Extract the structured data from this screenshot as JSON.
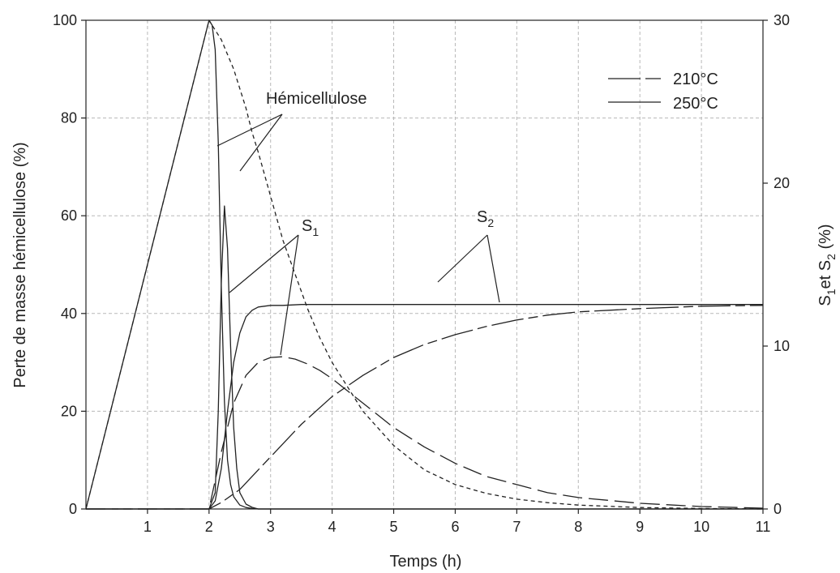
{
  "chart_data": {
    "type": "line",
    "xlabel": "Temps (h)",
    "ylabel_left": "Perte de masse hémicellulose (%)",
    "ylabel_right": {
      "s": "S",
      "sub1": "1",
      "et": "et S",
      "sub2": "2",
      "unit": " (%)"
    },
    "xlim": [
      0,
      11
    ],
    "ylim_left": [
      0,
      100
    ],
    "ylim_right": [
      0,
      30
    ],
    "x_ticks": [
      1,
      2,
      3,
      4,
      5,
      6,
      7,
      8,
      9,
      10,
      11
    ],
    "y_left_ticks": [
      0,
      20,
      40,
      60,
      80,
      100
    ],
    "y_right_ticks": [
      0,
      10,
      20,
      30
    ],
    "grid": true,
    "legend": {
      "placement": "top-right",
      "entries": [
        {
          "label": "210°C",
          "style": "dashed"
        },
        {
          "label": "250°C",
          "style": "solid"
        }
      ]
    },
    "annotations": {
      "hemicellulose": "Hémicellulose",
      "s1": {
        "main": "S",
        "sub": "1"
      },
      "s2": {
        "main": "S",
        "sub": "2"
      }
    },
    "series": [
      {
        "name": "Hémicellulose",
        "legend": "210°C",
        "axis": "left",
        "dash": "short",
        "x": [
          0,
          2.0,
          2.1,
          2.2,
          2.3,
          2.4,
          2.5,
          2.6,
          2.7,
          2.8,
          3.0,
          3.2,
          3.4,
          3.6,
          3.8,
          4.0,
          4.5,
          5.0,
          5.5,
          6.0,
          6.5,
          7.0,
          7.5,
          8.0,
          9.0,
          10.0,
          11.0
        ],
        "y": [
          0,
          100,
          98,
          96,
          93,
          90,
          86,
          82,
          77,
          73,
          64,
          55,
          48,
          41,
          35,
          30,
          20,
          13,
          8,
          5,
          3.2,
          2,
          1.3,
          0.8,
          0.3,
          0.1,
          0
        ]
      },
      {
        "name": "Hémicellulose",
        "legend": "250°C",
        "axis": "left",
        "dash": "solid",
        "x": [
          0,
          2.0,
          2.05,
          2.1,
          2.15,
          2.2,
          2.25,
          2.3,
          2.35,
          2.4,
          2.5,
          2.6,
          2.7,
          2.8,
          3.0,
          11.0
        ],
        "y": [
          0,
          100,
          99,
          94,
          75,
          45,
          22,
          10,
          5,
          2.5,
          0.8,
          0.3,
          0.1,
          0,
          0,
          0
        ]
      },
      {
        "name": "S1",
        "legend": "210°C",
        "axis": "right",
        "dash": "long",
        "x": [
          0,
          2.0,
          2.2,
          2.4,
          2.6,
          2.8,
          3.0,
          3.2,
          3.4,
          3.6,
          3.8,
          4.0,
          4.5,
          5.0,
          5.5,
          6.0,
          6.5,
          7.0,
          7.5,
          8.0,
          9.0,
          10.0,
          11.0
        ],
        "y": [
          0,
          0,
          3.5,
          6.5,
          8.2,
          9.0,
          9.3,
          9.35,
          9.2,
          8.9,
          8.5,
          8.0,
          6.5,
          5.0,
          3.8,
          2.8,
          2.0,
          1.5,
          1.0,
          0.7,
          0.35,
          0.15,
          0.05
        ]
      },
      {
        "name": "S1",
        "legend": "250°C",
        "axis": "right",
        "dash": "solid",
        "x": [
          0,
          2.0,
          2.1,
          2.15,
          2.2,
          2.25,
          2.3,
          2.35,
          2.4,
          2.45,
          2.5,
          2.6,
          2.7,
          2.8,
          3.0,
          11.0
        ],
        "y": [
          0,
          0,
          1.0,
          6.0,
          14.0,
          18.6,
          16.0,
          10.0,
          5.0,
          2.5,
          1.0,
          0.3,
          0.1,
          0,
          0,
          0
        ]
      },
      {
        "name": "S2",
        "legend": "210°C",
        "axis": "right",
        "dash": "dashdot",
        "x": [
          0,
          2.0,
          2.2,
          2.5,
          3.0,
          3.5,
          4.0,
          4.5,
          5.0,
          5.5,
          6.0,
          6.5,
          7.0,
          7.5,
          8.0,
          8.5,
          9.0,
          10.0,
          11.0
        ],
        "y": [
          0,
          0,
          0.4,
          1.2,
          3.2,
          5.2,
          6.9,
          8.2,
          9.3,
          10.1,
          10.7,
          11.2,
          11.6,
          11.9,
          12.1,
          12.2,
          12.3,
          12.45,
          12.5
        ]
      },
      {
        "name": "S2",
        "legend": "250°C",
        "axis": "right",
        "dash": "solid",
        "x": [
          0,
          2.0,
          2.1,
          2.2,
          2.3,
          2.4,
          2.5,
          2.6,
          2.7,
          2.8,
          3.0,
          3.2,
          3.5,
          11.0
        ],
        "y": [
          0,
          0,
          0.5,
          2.5,
          6.0,
          9.0,
          10.8,
          11.8,
          12.2,
          12.4,
          12.5,
          12.5,
          12.55,
          12.55
        ]
      }
    ]
  }
}
